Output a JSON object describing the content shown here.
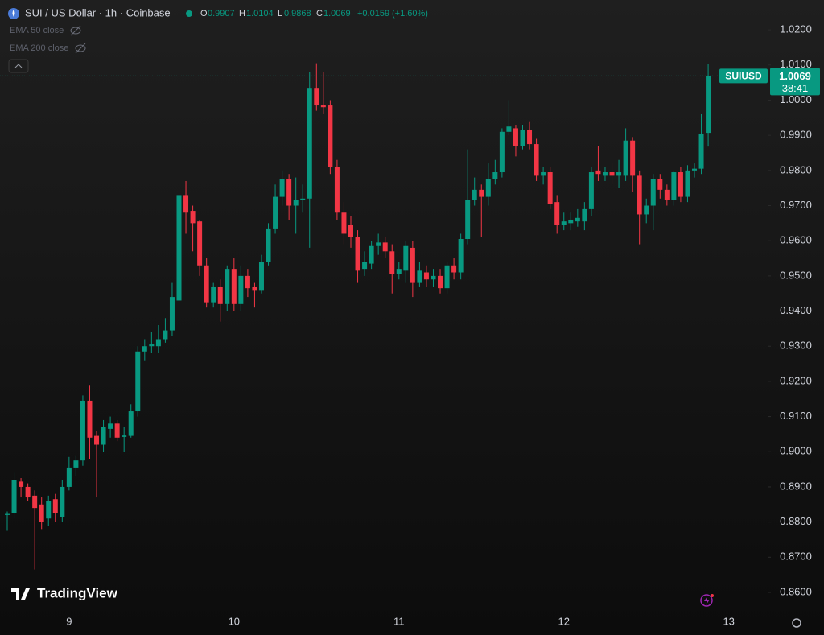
{
  "header": {
    "symbol": "SUI / US Dollar · 1h · Coinbase",
    "o_label": "O",
    "open": "0.9907",
    "h_label": "H",
    "high": "1.0104",
    "l_label": "L",
    "low": "0.9868",
    "c_label": "C",
    "close": "1.0069",
    "change": "+0.0159",
    "change_pct": "(+1.60%)"
  },
  "indicators": [
    "EMA 50 close",
    "EMA 200 close"
  ],
  "price_tag": {
    "ticker": "SUIUSD",
    "price": "1.0069",
    "countdown": "38:41"
  },
  "brand": "TradingView",
  "chart_data": {
    "type": "candlestick",
    "up_color": "#089981",
    "down_color": "#f23645",
    "categories": [
      null,
      null,
      null,
      null,
      null,
      null,
      null,
      null,
      null,
      "9",
      null,
      null,
      null,
      null,
      null,
      null,
      null,
      null,
      null,
      null,
      null,
      null,
      null,
      null,
      null,
      null,
      null,
      null,
      null,
      null,
      null,
      null,
      null,
      "10",
      null,
      null,
      null,
      null,
      null,
      null,
      null,
      null,
      null,
      null,
      null,
      null,
      null,
      null,
      null,
      null,
      null,
      null,
      null,
      null,
      null,
      null,
      null,
      "11",
      null,
      null,
      null,
      null,
      null,
      null,
      null,
      null,
      null,
      null,
      null,
      null,
      null,
      null,
      null,
      null,
      null,
      null,
      null,
      null,
      null,
      null,
      null,
      "12",
      null,
      null,
      null,
      null,
      null,
      null,
      null,
      null,
      null,
      null,
      null,
      null,
      null,
      null,
      null,
      null,
      null,
      null,
      null,
      null,
      null,
      null,
      null,
      "13"
    ],
    "open": [
      0.882,
      0.8825,
      0.8915,
      0.89,
      0.8875,
      0.885,
      0.881,
      0.8865,
      0.8815,
      0.89,
      0.8955,
      0.8975,
      0.9145,
      0.9045,
      0.902,
      0.9065,
      0.908,
      0.9042,
      0.9045,
      0.9115,
      0.9285,
      0.93,
      0.93,
      0.932,
      0.9345,
      0.943,
      0.973,
      0.9685,
      0.9655,
      0.953,
      0.9425,
      0.947,
      0.942,
      0.952,
      0.942,
      0.95,
      0.947,
      0.946,
      0.954,
      0.9635,
      0.9725,
      0.9775,
      0.97,
      0.9715,
      0.972,
      1.0035,
      0.9985,
      0.9985,
      0.981,
      0.968,
      0.9645,
      0.961,
      0.952,
      0.9535,
      0.9585,
      0.9595,
      0.957,
      0.9505,
      0.9515,
      0.958,
      0.948,
      0.951,
      0.949,
      0.95,
      0.9465,
      0.953,
      0.951,
      0.9605,
      0.9715,
      0.9745,
      0.9725,
      0.9775,
      0.9795,
      0.991,
      0.992,
      0.987,
      0.9915,
      0.9875,
      0.9785,
      0.9795,
      0.971,
      0.9645,
      0.965,
      0.9655,
      0.9655,
      0.969,
      0.98,
      0.9785,
      0.9795,
      0.9785,
      0.9785,
      0.9885,
      0.9785,
      0.9675,
      0.97,
      0.9775,
      0.9745,
      0.9715,
      0.9795,
      0.9725,
      0.98,
      0.9805,
      0.9907,
      null,
      null,
      null
    ],
    "high": [
      0.883,
      0.894,
      0.8925,
      0.891,
      0.889,
      0.887,
      0.8875,
      0.888,
      0.892,
      0.8985,
      0.899,
      0.916,
      0.919,
      0.906,
      0.909,
      0.91,
      0.909,
      0.907,
      0.9135,
      0.93,
      0.932,
      0.934,
      0.936,
      0.938,
      0.948,
      0.988,
      0.977,
      0.97,
      0.966,
      0.955,
      0.948,
      0.949,
      0.953,
      0.955,
      0.953,
      0.952,
      0.948,
      0.956,
      0.965,
      0.976,
      0.98,
      0.979,
      0.978,
      0.976,
      1.008,
      1.0105,
      1.008,
      1.0,
      0.983,
      0.971,
      0.967,
      0.963,
      0.957,
      0.96,
      0.962,
      0.961,
      0.959,
      0.954,
      0.96,
      0.96,
      0.954,
      0.953,
      0.952,
      0.952,
      0.954,
      0.955,
      0.962,
      0.986,
      0.978,
      0.976,
      0.982,
      0.983,
      0.992,
      1.0,
      0.993,
      0.993,
      0.994,
      0.989,
      0.981,
      0.981,
      0.973,
      0.968,
      0.968,
      0.969,
      0.971,
      0.981,
      0.987,
      0.981,
      0.982,
      0.983,
      0.992,
      0.9895,
      0.98,
      0.972,
      0.979,
      0.979,
      0.976,
      0.98,
      0.981,
      0.9815,
      0.982,
      0.996,
      1.0104,
      null,
      null,
      null
    ],
    "low": [
      0.8775,
      0.881,
      0.887,
      0.886,
      0.8665,
      0.878,
      0.879,
      0.88,
      0.88,
      0.889,
      0.893,
      0.896,
      0.898,
      0.887,
      0.9,
      0.904,
      0.903,
      0.9,
      0.904,
      0.91,
      0.926,
      0.928,
      0.928,
      0.931,
      0.933,
      0.942,
      0.962,
      0.957,
      0.95,
      0.941,
      0.941,
      0.937,
      0.94,
      0.94,
      0.94,
      0.944,
      0.941,
      0.945,
      0.953,
      0.962,
      0.97,
      0.966,
      0.962,
      0.968,
      0.958,
      0.997,
      0.996,
      0.979,
      0.966,
      0.959,
      0.958,
      0.948,
      0.95,
      0.952,
      0.956,
      0.955,
      0.945,
      0.949,
      0.948,
      0.944,
      0.947,
      0.947,
      0.947,
      0.945,
      0.945,
      0.949,
      0.949,
      0.959,
      0.97,
      0.961,
      0.97,
      0.976,
      0.978,
      0.99,
      0.984,
      0.986,
      0.986,
      0.977,
      0.976,
      0.969,
      0.962,
      0.963,
      0.963,
      0.964,
      0.963,
      0.967,
      0.977,
      0.977,
      0.976,
      0.975,
      0.977,
      0.974,
      0.959,
      0.965,
      0.963,
      0.972,
      0.97,
      0.97,
      0.971,
      0.971,
      0.978,
      0.979,
      0.9868,
      null,
      null,
      null
    ],
    "close": [
      0.8823,
      0.892,
      0.89,
      0.887,
      0.884,
      0.88,
      0.886,
      0.8825,
      0.89,
      0.8955,
      0.8975,
      0.9145,
      0.904,
      0.902,
      0.907,
      0.908,
      0.904,
      0.9046,
      0.9115,
      0.9285,
      0.93,
      0.9305,
      0.932,
      0.9345,
      0.944,
      0.973,
      0.968,
      0.965,
      0.953,
      0.9425,
      0.947,
      0.942,
      0.952,
      0.942,
      0.95,
      0.9465,
      0.946,
      0.954,
      0.9635,
      0.9725,
      0.9775,
      0.97,
      0.9715,
      0.972,
      1.0035,
      0.9985,
      0.998,
      0.981,
      0.968,
      0.962,
      0.961,
      0.9515,
      0.954,
      0.9585,
      0.9595,
      0.957,
      0.9505,
      0.952,
      0.9585,
      0.948,
      0.9515,
      0.949,
      0.95,
      0.9465,
      0.953,
      0.951,
      0.9605,
      0.9715,
      0.9745,
      0.9725,
      0.9775,
      0.9795,
      0.991,
      0.9925,
      0.987,
      0.9915,
      0.9875,
      0.9785,
      0.9795,
      0.9705,
      0.9645,
      0.9655,
      0.966,
      0.9665,
      0.969,
      0.9795,
      0.979,
      0.9795,
      0.9785,
      0.9795,
      0.9885,
      0.9785,
      0.9675,
      0.97,
      0.9775,
      0.9745,
      0.9715,
      0.9795,
      0.9725,
      0.98,
      0.9805,
      0.9905,
      1.0069,
      null,
      null,
      null
    ],
    "ylim": [
      0.8545,
      1.0285
    ],
    "yticks": [
      {
        "value": 1.02,
        "label": "1.0200"
      },
      {
        "value": 1.01,
        "label": "1.0100"
      },
      {
        "value": 1.0,
        "label": "1.0000"
      },
      {
        "value": 0.99,
        "label": "0.9900"
      },
      {
        "value": 0.98,
        "label": "0.9800"
      },
      {
        "value": 0.97,
        "label": "0.9700"
      },
      {
        "value": 0.96,
        "label": "0.9600"
      },
      {
        "value": 0.95,
        "label": "0.9500"
      },
      {
        "value": 0.94,
        "label": "0.9400"
      },
      {
        "value": 0.93,
        "label": "0.9300"
      },
      {
        "value": 0.92,
        "label": "0.9200"
      },
      {
        "value": 0.91,
        "label": "0.9100"
      },
      {
        "value": 0.9,
        "label": "0.9000"
      },
      {
        "value": 0.89,
        "label": "0.8900"
      },
      {
        "value": 0.88,
        "label": "0.8800"
      },
      {
        "value": 0.87,
        "label": "0.8700"
      },
      {
        "value": 0.86,
        "label": "0.8600"
      }
    ],
    "grid": false
  }
}
